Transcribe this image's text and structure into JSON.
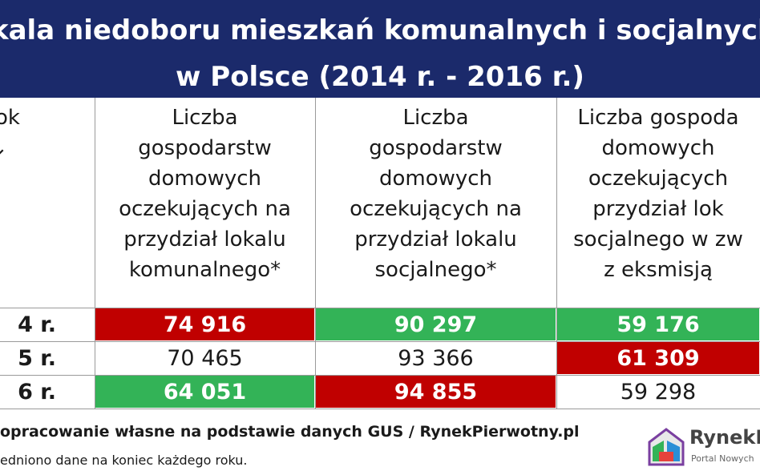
{
  "chart_data": {
    "type": "table",
    "title_line1": "kala niedoboru mieszkań komunalnych i socjalnych",
    "title_line2": "w Polsce (2014 r. - 2016 r.)",
    "row_header": "ok",
    "row_header_arrow": "↓",
    "columns": [
      "Liczba\ngospodarstw\ndomowych\noczekujących na\nprzydział lokalu\nkomunalnego*",
      "Liczba\ngospodarstw\ndomowych\noczekujących na\nprzydział lokalu\nsocjalnego*",
      "Liczba gospoda\ndomowych\noczekujących\nprzydział lok\nsocjalnego w zw\nz eksmisją"
    ],
    "rows": [
      {
        "year": "4 r.",
        "values": [
          "74 916",
          "90 297",
          "59 176"
        ],
        "colors": [
          "red",
          "green",
          "green"
        ]
      },
      {
        "year": "5 r.",
        "values": [
          "70 465",
          "93 366",
          "61 309"
        ],
        "colors": [
          "",
          "",
          "red"
        ]
      },
      {
        "year": "6 r.",
        "values": [
          "64 051",
          "94 855",
          "59 298"
        ],
        "colors": [
          "green",
          "red",
          ""
        ]
      }
    ],
    "highlight_colors": {
      "red": "#c00000",
      "green": "#33b357",
      "header": "#1b2a6b"
    }
  },
  "source": "opracowanie własne na podstawie danych GUS / RynekPierwotny.pl",
  "note": "edniono dane na koniec każdego roku.",
  "logo": {
    "name": "RynekPi",
    "subtitle": "Portal Nowych"
  }
}
